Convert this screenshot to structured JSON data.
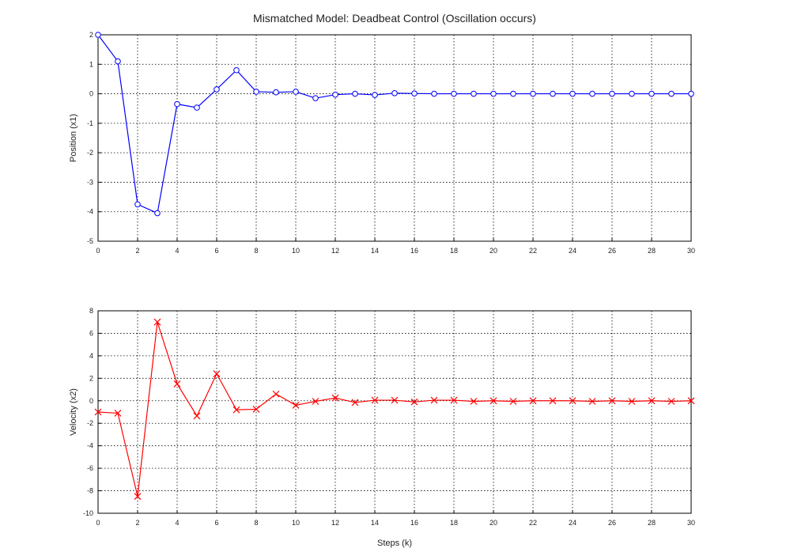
{
  "title": "Mismatched Model: Deadbeat Control (Oscillation occurs)",
  "chart_data": [
    {
      "type": "line",
      "title": "Mismatched Model: Deadbeat Control (Oscillation occurs)",
      "xlabel": "",
      "ylabel": "Position (x1)",
      "xlim": [
        0,
        30
      ],
      "ylim": [
        -5,
        2
      ],
      "xticks": [
        0,
        2,
        4,
        6,
        8,
        10,
        12,
        14,
        16,
        18,
        20,
        22,
        24,
        26,
        28,
        30
      ],
      "yticks": [
        2,
        1,
        0,
        -1,
        -2,
        -3,
        -4,
        -5
      ],
      "grid": true,
      "series": [
        {
          "color": "#0000ff",
          "marker": "circle",
          "x": [
            0,
            1,
            2,
            3,
            4,
            5,
            6,
            7,
            8,
            9,
            10,
            11,
            12,
            13,
            14,
            15,
            16,
            17,
            18,
            19,
            20,
            21,
            22,
            23,
            24,
            25,
            26,
            27,
            28,
            29,
            30
          ],
          "values": [
            2.0,
            1.1,
            -3.75,
            -4.05,
            -0.35,
            -0.47,
            0.15,
            0.8,
            0.07,
            0.05,
            0.07,
            -0.15,
            -0.03,
            0.0,
            -0.04,
            0.02,
            0.01,
            0.0,
            0.0,
            0.0,
            0.0,
            0.0,
            0.0,
            0.0,
            0.0,
            0.0,
            0.0,
            0.0,
            0.0,
            0.0,
            0.0
          ]
        }
      ]
    },
    {
      "type": "line",
      "title": "",
      "xlabel": "Steps (k)",
      "ylabel": "Velocity (x2)",
      "xlim": [
        0,
        30
      ],
      "ylim": [
        -10,
        8
      ],
      "xticks": [
        0,
        2,
        4,
        6,
        8,
        10,
        12,
        14,
        16,
        18,
        20,
        22,
        24,
        26,
        28,
        30
      ],
      "yticks": [
        8,
        6,
        4,
        2,
        0,
        -2,
        -4,
        -6,
        -8,
        -10
      ],
      "grid": true,
      "series": [
        {
          "color": "#ff0000",
          "marker": "x",
          "x": [
            0,
            1,
            2,
            3,
            4,
            5,
            6,
            7,
            8,
            9,
            10,
            11,
            12,
            13,
            14,
            15,
            16,
            17,
            18,
            19,
            20,
            21,
            22,
            23,
            24,
            25,
            26,
            27,
            28,
            29,
            30
          ],
          "values": [
            -1.0,
            -1.1,
            -8.5,
            7.0,
            1.5,
            -1.35,
            2.4,
            -0.8,
            -0.75,
            0.6,
            -0.4,
            -0.05,
            0.25,
            -0.15,
            0.05,
            0.05,
            -0.1,
            0.05,
            0.05,
            -0.05,
            0.0,
            -0.05,
            0.0,
            0.0,
            0.0,
            -0.05,
            0.0,
            -0.05,
            0.0,
            -0.05,
            0.0
          ]
        }
      ]
    }
  ]
}
